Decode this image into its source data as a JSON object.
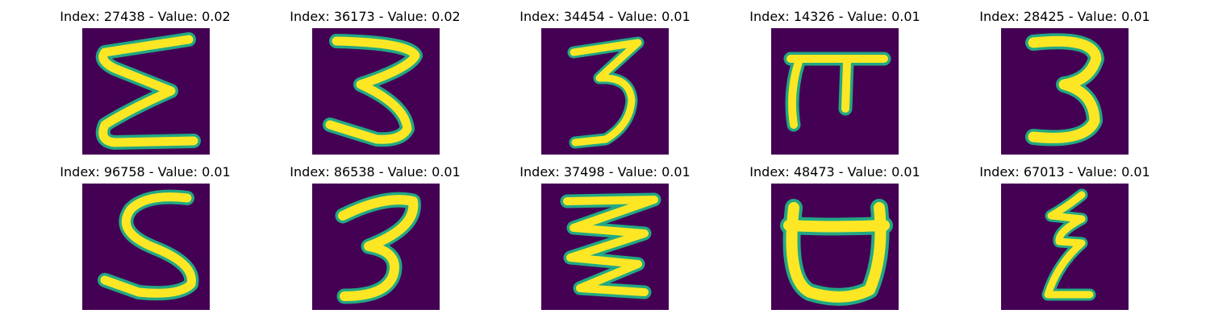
{
  "figure": {
    "colors": {
      "background": "#440154",
      "stroke_outer": "#22a884",
      "stroke_inner": "#fde725"
    },
    "tiles": [
      {
        "title": "Index: 27438 - Value: 0.02",
        "glyph": "sigma"
      },
      {
        "title": "Index: 36173 - Value: 0.02",
        "glyph": "three-wide"
      },
      {
        "title": "Index: 34454 - Value: 0.01",
        "glyph": "three-narrow"
      },
      {
        "title": "Index: 14326 - Value: 0.01",
        "glyph": "pi"
      },
      {
        "title": "Index: 28425 - Value: 0.01",
        "glyph": "three-bold"
      },
      {
        "title": "Index: 96758 - Value: 0.01",
        "glyph": "s-shape"
      },
      {
        "title": "Index: 86538 - Value: 0.01",
        "glyph": "three-round"
      },
      {
        "title": "Index: 37498 - Value: 0.01",
        "glyph": "zigzag"
      },
      {
        "title": "Index: 48473 - Value: 0.01",
        "glyph": "cup"
      },
      {
        "title": "Index: 67013 - Value: 0.01",
        "glyph": "z-shape"
      }
    ]
  }
}
